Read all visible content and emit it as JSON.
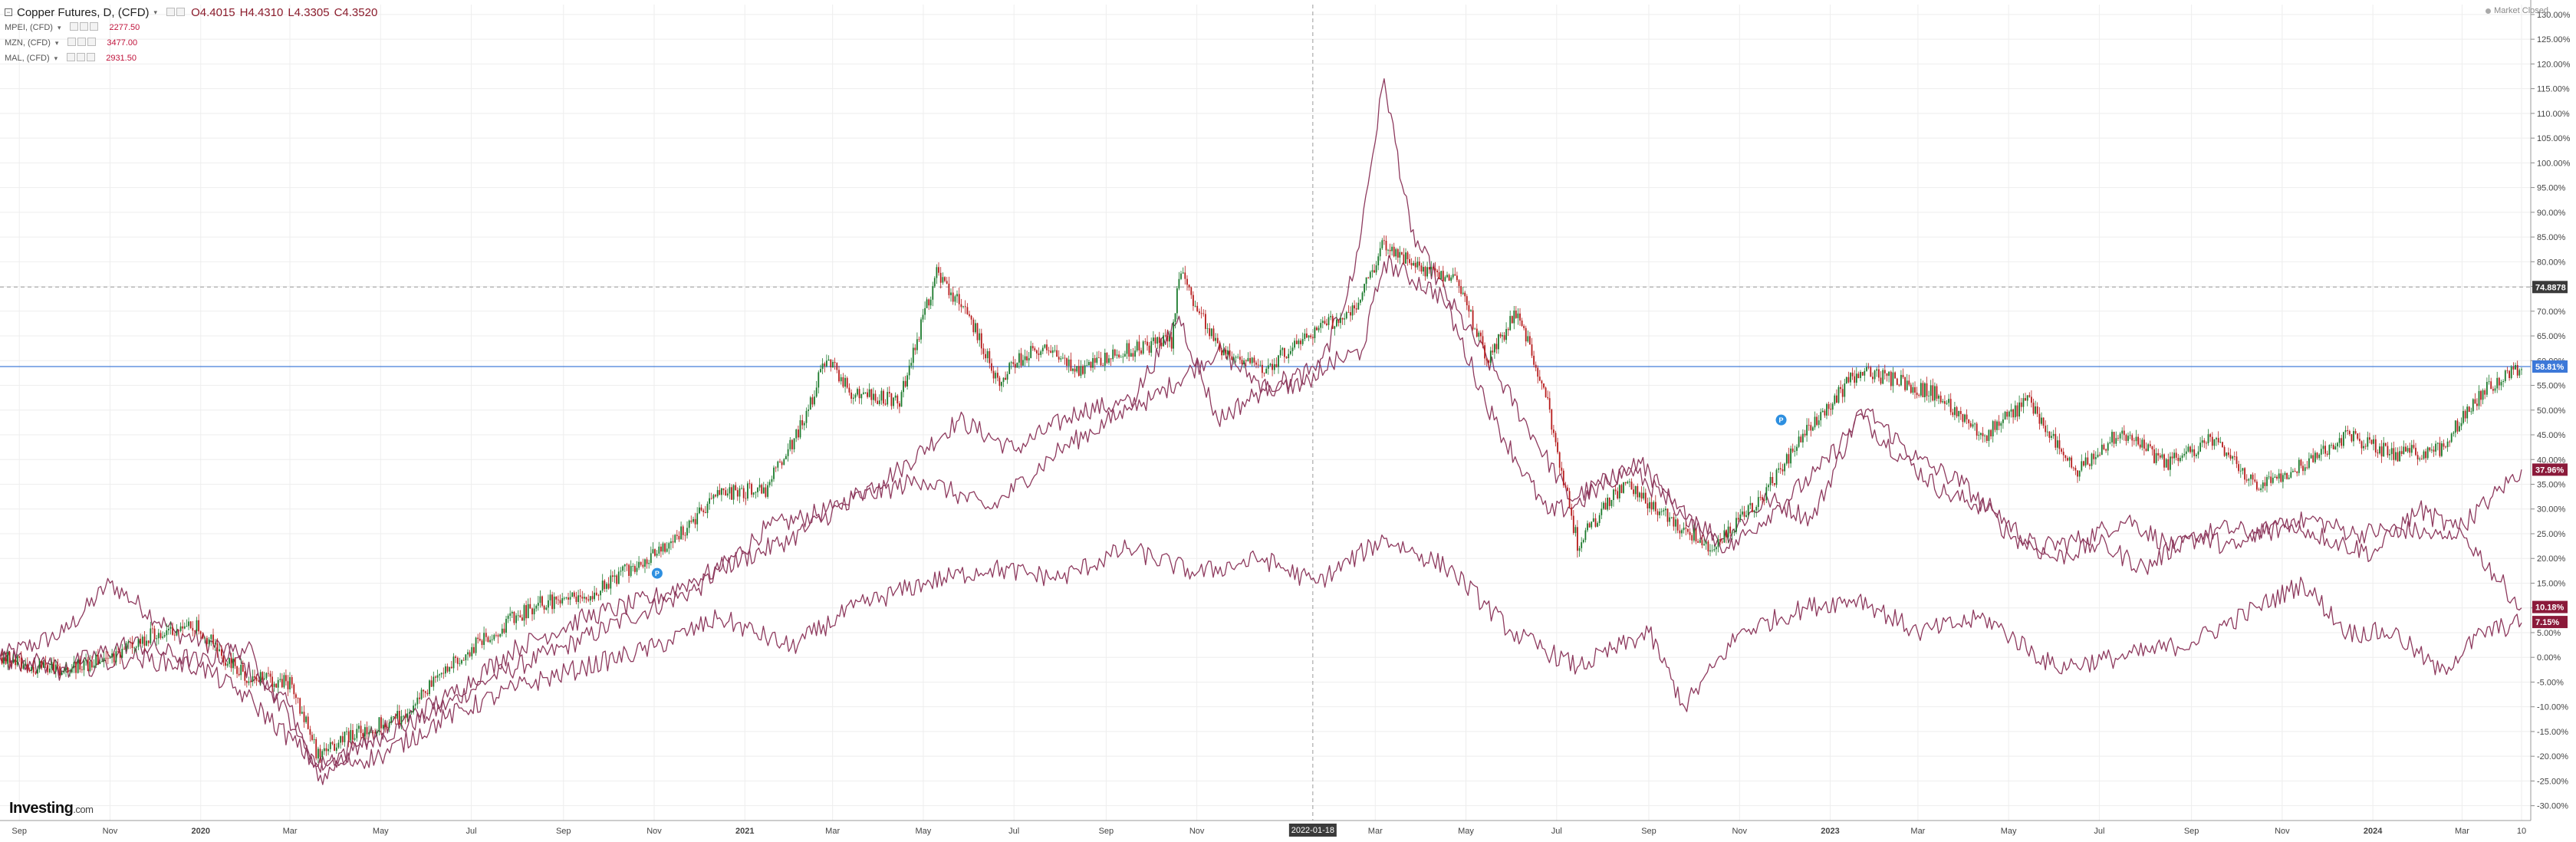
{
  "header": {
    "title": "Copper Futures, D, (CFD)",
    "ohlc": {
      "open": "O4.4015",
      "high": "H4.4310",
      "low": "L4.3305",
      "close": "C4.3520"
    },
    "market_status": "Market Closed"
  },
  "comparisons": [
    {
      "symbol": "MPEI, (CFD)",
      "value": "2277.50"
    },
    {
      "symbol": "MZN, (CFD)",
      "value": "3477.00"
    },
    {
      "symbol": "MAL, (CFD)",
      "value": "2931.50"
    }
  ],
  "logo": {
    "brand": "Investing",
    "suffix": ".com"
  },
  "crosshair": {
    "date_label": "2022-01-18",
    "price_label": "74.8878",
    "date": "2022-01-18",
    "value": 74.8878
  },
  "current_badges": [
    {
      "label": "58.81%",
      "value": 58.81,
      "color": "#3c78d8"
    },
    {
      "label": "37.96%",
      "value": 37.96,
      "color": "#8b1a3a"
    },
    {
      "label": "10.18%",
      "value": 10.18,
      "color": "#8b1a3a"
    },
    {
      "label": "7.15%",
      "value": 7.15,
      "color": "#8b1a3a"
    }
  ],
  "colors": {
    "copper_up": "#1b7a2c",
    "copper_down": "#b71c1c",
    "compare_line": "#8e3a5e",
    "current_price_line": "#3c78d8",
    "badge_compare": "#8b1a3a"
  },
  "chart_data": {
    "type": "line",
    "title": "Copper Futures, D, (CFD)",
    "x_type": "date",
    "x_range": [
      "2019-08-19",
      "2024-04-10"
    ],
    "y_unit": "%",
    "ylim": [
      -33,
      132
    ],
    "y_ticks": [
      -30,
      -25,
      -20,
      -15,
      -10,
      -5,
      0,
      5,
      10,
      15,
      20,
      25,
      30,
      35,
      40,
      45,
      50,
      55,
      60,
      65,
      70,
      75,
      80,
      85,
      90,
      95,
      100,
      105,
      110,
      115,
      120,
      125,
      130
    ],
    "y_tick_labels": [
      "-30.00%",
      "-25.00%",
      "-20.00%",
      "-15.00%",
      "-10.00%",
      "-5.00%",
      "0.00%",
      "5.00%",
      "10.00%",
      "15.00%",
      "20.00%",
      "25.00%",
      "30.00%",
      "35.00%",
      "40.00%",
      "45.00%",
      "50.00%",
      "55.00%",
      "60.00%",
      "65.00%",
      "70.00%",
      "75.00%",
      "80.00%",
      "85.00%",
      "90.00%",
      "95.00%",
      "100.00%",
      "105.00%",
      "110.00%",
      "115.00%",
      "120.00%",
      "125.00%",
      "130.00%"
    ],
    "x_ticks": [
      {
        "date": "2019-09-01",
        "label": "Sep"
      },
      {
        "date": "2019-11-01",
        "label": "Nov"
      },
      {
        "date": "2020-01-01",
        "label": "2020",
        "bold": true
      },
      {
        "date": "2020-03-01",
        "label": "Mar"
      },
      {
        "date": "2020-05-01",
        "label": "May"
      },
      {
        "date": "2020-07-01",
        "label": "Jul"
      },
      {
        "date": "2020-09-01",
        "label": "Sep"
      },
      {
        "date": "2020-11-01",
        "label": "Nov"
      },
      {
        "date": "2021-01-01",
        "label": "2021",
        "bold": true
      },
      {
        "date": "2021-03-01",
        "label": "Mar"
      },
      {
        "date": "2021-05-01",
        "label": "May"
      },
      {
        "date": "2021-07-01",
        "label": "Jul"
      },
      {
        "date": "2021-09-01",
        "label": "Sep"
      },
      {
        "date": "2021-11-01",
        "label": "Nov"
      },
      {
        "date": "2022-03-01",
        "label": "Mar"
      },
      {
        "date": "2022-05-01",
        "label": "May"
      },
      {
        "date": "2022-07-01",
        "label": "Jul"
      },
      {
        "date": "2022-09-01",
        "label": "Sep"
      },
      {
        "date": "2022-11-01",
        "label": "Nov"
      },
      {
        "date": "2023-01-01",
        "label": "2023",
        "bold": true
      },
      {
        "date": "2023-03-01",
        "label": "Mar"
      },
      {
        "date": "2023-05-01",
        "label": "May"
      },
      {
        "date": "2023-07-01",
        "label": "Jul"
      },
      {
        "date": "2023-09-01",
        "label": "Sep"
      },
      {
        "date": "2023-11-01",
        "label": "Nov"
      },
      {
        "date": "2024-01-01",
        "label": "2024",
        "bold": true
      },
      {
        "date": "2024-03-01",
        "label": "Mar"
      },
      {
        "date": "2024-04-10",
        "label": "10"
      }
    ],
    "grid": true,
    "event_markers": [
      {
        "date": "2020-11-03",
        "value": 17,
        "label": "P"
      },
      {
        "date": "2022-11-29",
        "value": 48,
        "label": "P"
      }
    ],
    "series": [
      {
        "name": "Copper Futures, D, (CFD)",
        "style": "candlestick",
        "x": [
          "2019-08-19",
          "2019-09-01",
          "2019-10-01",
          "2019-11-01",
          "2019-12-01",
          "2020-01-01",
          "2020-01-15",
          "2020-02-01",
          "2020-03-01",
          "2020-03-20",
          "2020-04-15",
          "2020-05-15",
          "2020-06-15",
          "2020-07-15",
          "2020-08-15",
          "2020-09-15",
          "2020-10-15",
          "2020-11-15",
          "2020-12-15",
          "2021-01-15",
          "2021-02-10",
          "2021-02-25",
          "2021-03-15",
          "2021-04-15",
          "2021-05-10",
          "2021-06-01",
          "2021-06-20",
          "2021-07-15",
          "2021-08-15",
          "2021-09-15",
          "2021-10-15",
          "2021-10-20",
          "2021-11-15",
          "2021-12-15",
          "2022-01-18",
          "2022-02-15",
          "2022-03-07",
          "2022-04-01",
          "2022-04-25",
          "2022-05-15",
          "2022-06-05",
          "2022-06-25",
          "2022-07-15",
          "2022-08-15",
          "2022-09-15",
          "2022-10-15",
          "2022-11-15",
          "2022-12-15",
          "2023-01-20",
          "2023-02-15",
          "2023-03-15",
          "2023-04-15",
          "2023-05-15",
          "2023-06-15",
          "2023-07-15",
          "2023-08-15",
          "2023-09-15",
          "2023-10-15",
          "2023-11-15",
          "2023-12-15",
          "2024-01-15",
          "2024-02-15",
          "2024-03-15",
          "2024-04-10"
        ],
        "y": [
          0,
          -1,
          -3,
          0,
          5,
          6,
          0,
          -4,
          -5,
          -20,
          -15,
          -12,
          -2,
          5,
          11,
          12,
          18,
          24,
          33,
          34,
          48,
          61,
          53,
          52,
          78,
          69,
          56,
          63,
          58,
          62,
          64,
          78,
          63,
          58,
          66,
          70,
          84,
          78,
          77,
          60,
          70,
          51,
          23,
          35,
          28,
          22,
          32,
          45,
          58,
          56,
          53,
          45,
          52,
          37,
          46,
          39,
          44,
          35,
          39,
          45,
          41,
          42,
          54,
          59
        ]
      },
      {
        "name": "MPEI, (CFD)",
        "style": "line",
        "x": [
          "2019-08-19",
          "2019-10-01",
          "2019-11-01",
          "2019-12-15",
          "2020-01-15",
          "2020-03-01",
          "2020-03-20",
          "2020-04-15",
          "2020-06-01",
          "2020-07-15",
          "2020-09-01",
          "2020-10-15",
          "2020-12-01",
          "2021-01-15",
          "2021-03-01",
          "2021-04-15",
          "2021-05-25",
          "2021-07-01",
          "2021-08-15",
          "2021-10-01",
          "2021-11-15",
          "2021-12-20",
          "2022-01-20",
          "2022-02-15",
          "2022-03-07",
          "2022-03-25",
          "2022-04-20",
          "2022-05-20",
          "2022-06-15",
          "2022-07-10",
          "2022-08-20",
          "2022-09-20",
          "2022-10-20",
          "2022-11-20",
          "2022-12-20",
          "2023-01-20",
          "2023-02-20",
          "2023-03-20",
          "2023-04-20",
          "2023-05-20",
          "2023-06-20",
          "2023-07-20",
          "2023-08-20",
          "2023-09-20",
          "2023-10-20",
          "2023-11-20",
          "2023-12-20",
          "2024-01-20",
          "2024-02-20",
          "2024-03-20",
          "2024-04-10"
        ],
        "y": [
          0,
          5,
          15,
          5,
          2,
          -10,
          -25,
          -18,
          -12,
          -4,
          2,
          8,
          14,
          26,
          30,
          38,
          48,
          42,
          50,
          52,
          62,
          54,
          56,
          78,
          117,
          86,
          72,
          58,
          45,
          32,
          38,
          30,
          24,
          32,
          28,
          49,
          40,
          33,
          30,
          22,
          24,
          28,
          22,
          26,
          25,
          28,
          25,
          26,
          24,
          32,
          38
        ]
      },
      {
        "name": "MZN, (CFD)",
        "style": "line",
        "x": [
          "2019-08-19",
          "2019-10-01",
          "2019-11-15",
          "2020-01-01",
          "2020-02-01",
          "2020-03-20",
          "2020-05-01",
          "2020-06-15",
          "2020-08-01",
          "2020-09-15",
          "2020-11-01",
          "2020-12-15",
          "2021-02-01",
          "2021-03-15",
          "2021-05-01",
          "2021-06-15",
          "2021-08-01",
          "2021-09-15",
          "2021-10-20",
          "2021-11-15",
          "2021-12-20",
          "2022-01-20",
          "2022-02-20",
          "2022-03-07",
          "2022-04-15",
          "2022-05-20",
          "2022-06-25",
          "2022-07-15",
          "2022-08-25",
          "2022-09-25",
          "2022-10-25",
          "2022-11-25",
          "2022-12-25",
          "2023-01-25",
          "2023-03-01",
          "2023-04-01",
          "2023-05-01",
          "2023-06-01",
          "2023-07-01",
          "2023-08-01",
          "2023-09-01",
          "2023-10-01",
          "2023-11-01",
          "2023-12-01",
          "2024-01-01",
          "2024-02-01",
          "2024-03-01",
          "2024-04-10"
        ],
        "y": [
          0,
          -2,
          3,
          -1,
          2,
          -22,
          -15,
          -8,
          2,
          8,
          12,
          18,
          24,
          32,
          36,
          30,
          42,
          50,
          69,
          48,
          55,
          58,
          62,
          80,
          73,
          48,
          29,
          31,
          40,
          28,
          22,
          30,
          38,
          50,
          40,
          35,
          25,
          20,
          23,
          18,
          25,
          22,
          28,
          24,
          21,
          30,
          25,
          10
        ]
      },
      {
        "name": "MAL, (CFD)",
        "style": "line",
        "x": [
          "2019-08-19",
          "2019-10-01",
          "2019-11-15",
          "2020-01-01",
          "2020-02-01",
          "2020-03-20",
          "2020-05-01",
          "2020-06-15",
          "2020-08-01",
          "2020-09-15",
          "2020-11-01",
          "2020-12-15",
          "2021-02-01",
          "2021-03-15",
          "2021-05-01",
          "2021-06-15",
          "2021-08-01",
          "2021-09-15",
          "2021-11-01",
          "2021-12-15",
          "2022-01-20",
          "2022-03-07",
          "2022-04-20",
          "2022-06-01",
          "2022-07-15",
          "2022-09-01",
          "2022-09-25",
          "2022-11-01",
          "2022-12-15",
          "2023-01-20",
          "2023-03-01",
          "2023-04-15",
          "2023-06-01",
          "2023-07-15",
          "2023-09-01",
          "2023-10-15",
          "2023-11-15",
          "2023-12-15",
          "2024-01-15",
          "2024-02-15",
          "2024-03-15",
          "2024-04-10"
        ],
        "y": [
          0,
          -3,
          0,
          -2,
          -8,
          -22,
          -20,
          -12,
          -6,
          -2,
          2,
          8,
          2,
          10,
          15,
          18,
          16,
          22,
          17,
          20,
          15,
          24,
          18,
          5,
          -2,
          5,
          -10,
          5,
          10,
          12,
          5,
          8,
          -2,
          0,
          3,
          10,
          15,
          5,
          5,
          -3,
          5,
          7
        ]
      }
    ]
  }
}
